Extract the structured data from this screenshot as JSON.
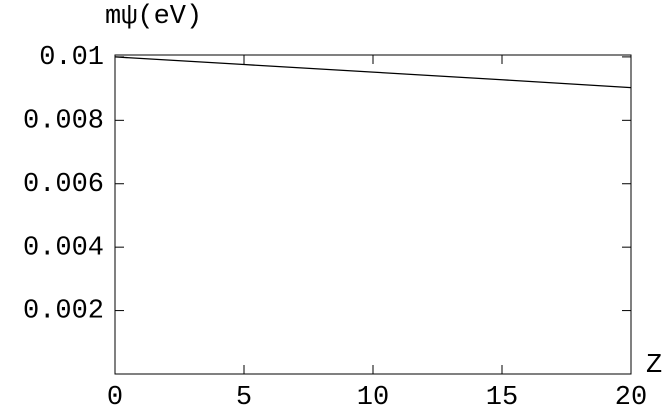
{
  "chart_data": {
    "type": "line",
    "ylabel": "mψ(eV)",
    "xlabel": "Z",
    "x": [
      0,
      5,
      10,
      15,
      20
    ],
    "series": [
      {
        "color": "#000000",
        "values": [
          0.01,
          0.00976,
          0.00952,
          0.00928,
          0.00903
        ]
      }
    ],
    "xlim": [
      0,
      20
    ],
    "xticks": [
      0,
      5,
      10,
      15,
      20
    ],
    "ylim": [
      0,
      0.01006
    ],
    "yticks": [
      0.002,
      0.004,
      0.006,
      0.008,
      0.01
    ]
  }
}
